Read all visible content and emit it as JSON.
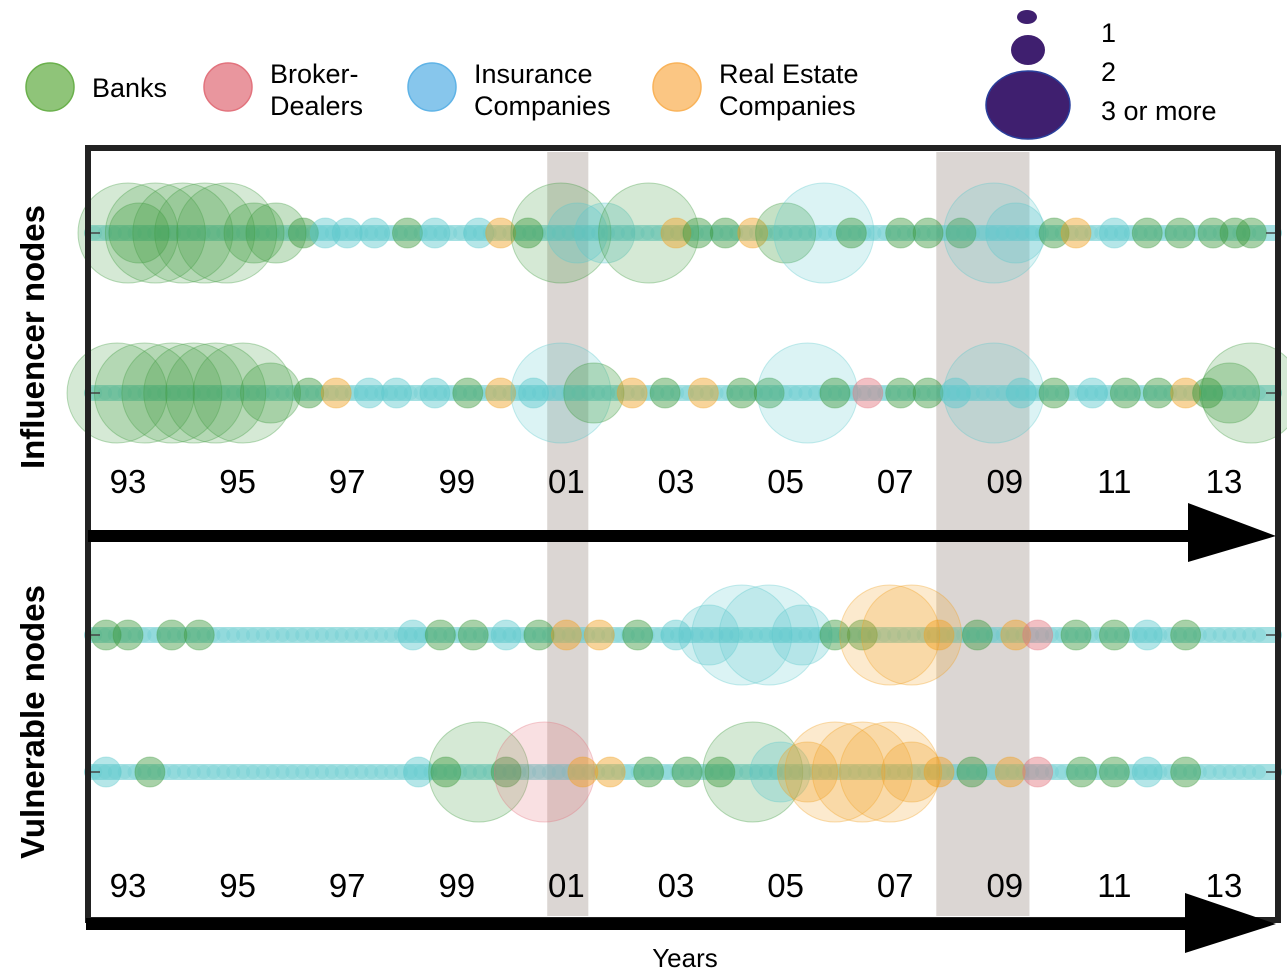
{
  "chart_data": {
    "type": "scatter",
    "xlabel": "Years",
    "x_range": [
      1992.3,
      2013.9
    ],
    "tick_labels": [
      "93",
      "95",
      "97",
      "99",
      "01",
      "03",
      "05",
      "07",
      "09",
      "11",
      "13"
    ],
    "tick_years": [
      1993,
      1995,
      1997,
      1999,
      2001,
      2003,
      2005,
      2007,
      2009,
      2011,
      2013
    ],
    "shaded_periods": [
      [
        2000.65,
        2001.4
      ],
      [
        2007.75,
        2009.45
      ]
    ],
    "legend": {
      "categories": [
        {
          "label_lines": [
            "Banks"
          ],
          "color": "#6ab04c"
        },
        {
          "label_lines": [
            "Broker-",
            "Dealers"
          ],
          "color": "#e2737d"
        },
        {
          "label_lines": [
            "Insurance",
            "Companies"
          ],
          "color": "#5fb3e6"
        },
        {
          "label_lines": [
            "Real Estate",
            "Companies"
          ],
          "color": "#f9b35a"
        }
      ],
      "size_labels": [
        "1",
        "2",
        "3 or more"
      ],
      "size_color": "#3f1f6f"
    },
    "series_colors": {
      "bank": "#3e9a3e",
      "broker": "#e2737d",
      "insurance": "#5cc8cc",
      "realestate": "#f0a020"
    },
    "panels": [
      {
        "label": "Influencer nodes",
        "rows": 2
      },
      {
        "label": "Vulnerable nodes",
        "rows": 2
      }
    ],
    "strips": [
      {
        "panel": 0,
        "row": 0,
        "base": "#5cc8cc",
        "bubbles": [
          [
            1993.0,
            3,
            "bank"
          ],
          [
            1993.5,
            3,
            "bank"
          ],
          [
            1994.0,
            3,
            "bank"
          ],
          [
            1994.4,
            3,
            "bank"
          ],
          [
            1994.8,
            3,
            "bank"
          ],
          [
            1995.3,
            2,
            "bank"
          ],
          [
            1995.7,
            2,
            "bank"
          ],
          [
            1993.2,
            2,
            "bank"
          ],
          [
            1996.2,
            1,
            "bank"
          ],
          [
            1996.6,
            1,
            "insurance"
          ],
          [
            1997.0,
            1,
            "insurance"
          ],
          [
            1997.5,
            1,
            "insurance"
          ],
          [
            1998.1,
            1,
            "bank"
          ],
          [
            1998.6,
            1,
            "insurance"
          ],
          [
            1999.4,
            1,
            "insurance"
          ],
          [
            1999.8,
            1,
            "realestate"
          ],
          [
            2000.3,
            1,
            "bank"
          ],
          [
            2000.9,
            3,
            "bank"
          ],
          [
            2001.2,
            2,
            "insurance"
          ],
          [
            2001.7,
            2,
            "insurance"
          ],
          [
            2002.5,
            3,
            "bank"
          ],
          [
            2003.0,
            1,
            "realestate"
          ],
          [
            2003.4,
            1,
            "bank"
          ],
          [
            2003.9,
            1,
            "bank"
          ],
          [
            2004.4,
            1,
            "realestate"
          ],
          [
            2005.0,
            2,
            "bank"
          ],
          [
            2005.7,
            3,
            "insurance"
          ],
          [
            2006.2,
            1,
            "bank"
          ],
          [
            2007.1,
            1,
            "bank"
          ],
          [
            2007.6,
            1,
            "bank"
          ],
          [
            2008.2,
            1,
            "bank"
          ],
          [
            2008.8,
            3,
            "insurance"
          ],
          [
            2009.2,
            2,
            "insurance"
          ],
          [
            2009.9,
            1,
            "bank"
          ],
          [
            2010.3,
            1,
            "realestate"
          ],
          [
            2011.0,
            1,
            "insurance"
          ],
          [
            2011.6,
            1,
            "bank"
          ],
          [
            2012.2,
            1,
            "bank"
          ],
          [
            2012.8,
            1,
            "bank"
          ],
          [
            2013.2,
            1,
            "bank"
          ],
          [
            2013.5,
            1,
            "bank"
          ]
        ]
      },
      {
        "panel": 0,
        "row": 1,
        "base": "#5cc8cc",
        "bubbles": [
          [
            1992.8,
            3,
            "bank"
          ],
          [
            1993.3,
            3,
            "bank"
          ],
          [
            1993.8,
            3,
            "bank"
          ],
          [
            1994.2,
            3,
            "bank"
          ],
          [
            1994.6,
            3,
            "bank"
          ],
          [
            1995.1,
            3,
            "bank"
          ],
          [
            1995.6,
            2,
            "bank"
          ],
          [
            1996.3,
            1,
            "bank"
          ],
          [
            1996.8,
            1,
            "realestate"
          ],
          [
            1997.4,
            1,
            "insurance"
          ],
          [
            1997.9,
            1,
            "insurance"
          ],
          [
            1998.6,
            1,
            "insurance"
          ],
          [
            1999.2,
            1,
            "bank"
          ],
          [
            1999.8,
            1,
            "realestate"
          ],
          [
            2000.4,
            1,
            "insurance"
          ],
          [
            2000.9,
            3,
            "insurance"
          ],
          [
            2001.5,
            2,
            "bank"
          ],
          [
            2002.2,
            1,
            "realestate"
          ],
          [
            2002.8,
            1,
            "bank"
          ],
          [
            2003.5,
            1,
            "realestate"
          ],
          [
            2004.2,
            1,
            "bank"
          ],
          [
            2004.7,
            1,
            "bank"
          ],
          [
            2005.4,
            3,
            "insurance"
          ],
          [
            2005.9,
            1,
            "bank"
          ],
          [
            2006.5,
            1,
            "broker"
          ],
          [
            2007.1,
            1,
            "bank"
          ],
          [
            2007.6,
            1,
            "bank"
          ],
          [
            2008.1,
            1,
            "insurance"
          ],
          [
            2008.8,
            3,
            "insurance"
          ],
          [
            2009.3,
            1,
            "insurance"
          ],
          [
            2009.9,
            1,
            "bank"
          ],
          [
            2010.6,
            1,
            "insurance"
          ],
          [
            2011.2,
            1,
            "bank"
          ],
          [
            2011.8,
            1,
            "bank"
          ],
          [
            2012.3,
            1,
            "realestate"
          ],
          [
            2012.7,
            1,
            "bank"
          ],
          [
            2013.1,
            2,
            "bank"
          ],
          [
            2013.5,
            3,
            "bank"
          ]
        ]
      },
      {
        "panel": 1,
        "row": 0,
        "base": "#5cc8cc",
        "bubbles": [
          [
            1992.6,
            1,
            "bank"
          ],
          [
            1993.0,
            1,
            "bank"
          ],
          [
            1993.8,
            1,
            "bank"
          ],
          [
            1994.3,
            1,
            "bank"
          ],
          [
            1998.2,
            1,
            "insurance"
          ],
          [
            1998.7,
            1,
            "bank"
          ],
          [
            1999.3,
            1,
            "bank"
          ],
          [
            1999.9,
            1,
            "insurance"
          ],
          [
            2000.5,
            1,
            "bank"
          ],
          [
            2001.0,
            1,
            "realestate"
          ],
          [
            2001.6,
            1,
            "realestate"
          ],
          [
            2002.3,
            1,
            "bank"
          ],
          [
            2003.0,
            1,
            "insurance"
          ],
          [
            2003.6,
            2,
            "insurance"
          ],
          [
            2004.2,
            3,
            "insurance"
          ],
          [
            2004.7,
            3,
            "insurance"
          ],
          [
            2005.3,
            2,
            "insurance"
          ],
          [
            2005.9,
            1,
            "bank"
          ],
          [
            2006.4,
            1,
            "bank"
          ],
          [
            2006.9,
            3,
            "realestate"
          ],
          [
            2007.3,
            3,
            "realestate"
          ],
          [
            2007.8,
            1,
            "realestate"
          ],
          [
            2008.5,
            1,
            "bank"
          ],
          [
            2009.2,
            1,
            "realestate"
          ],
          [
            2009.6,
            1,
            "broker"
          ],
          [
            2010.3,
            1,
            "bank"
          ],
          [
            2011.0,
            1,
            "bank"
          ],
          [
            2011.6,
            1,
            "insurance"
          ],
          [
            2012.3,
            1,
            "bank"
          ]
        ]
      },
      {
        "panel": 1,
        "row": 1,
        "base": "#5cc8cc",
        "bubbles": [
          [
            1992.6,
            1,
            "insurance"
          ],
          [
            1993.4,
            1,
            "bank"
          ],
          [
            1998.3,
            1,
            "insurance"
          ],
          [
            1998.8,
            1,
            "bank"
          ],
          [
            1999.4,
            3,
            "bank"
          ],
          [
            1999.9,
            1,
            "bank"
          ],
          [
            2000.6,
            3,
            "broker"
          ],
          [
            2001.3,
            1,
            "realestate"
          ],
          [
            2001.8,
            1,
            "realestate"
          ],
          [
            2002.5,
            1,
            "bank"
          ],
          [
            2003.2,
            1,
            "bank"
          ],
          [
            2003.8,
            1,
            "bank"
          ],
          [
            2004.4,
            3,
            "bank"
          ],
          [
            2004.9,
            2,
            "insurance"
          ],
          [
            2005.4,
            2,
            "realestate"
          ],
          [
            2005.9,
            3,
            "realestate"
          ],
          [
            2006.4,
            3,
            "realestate"
          ],
          [
            2006.9,
            3,
            "realestate"
          ],
          [
            2007.3,
            2,
            "realestate"
          ],
          [
            2007.8,
            1,
            "realestate"
          ],
          [
            2008.4,
            1,
            "bank"
          ],
          [
            2009.1,
            1,
            "realestate"
          ],
          [
            2009.6,
            1,
            "broker"
          ],
          [
            2010.4,
            1,
            "bank"
          ],
          [
            2011.0,
            1,
            "bank"
          ],
          [
            2011.6,
            1,
            "insurance"
          ],
          [
            2012.3,
            1,
            "bank"
          ]
        ]
      }
    ]
  }
}
